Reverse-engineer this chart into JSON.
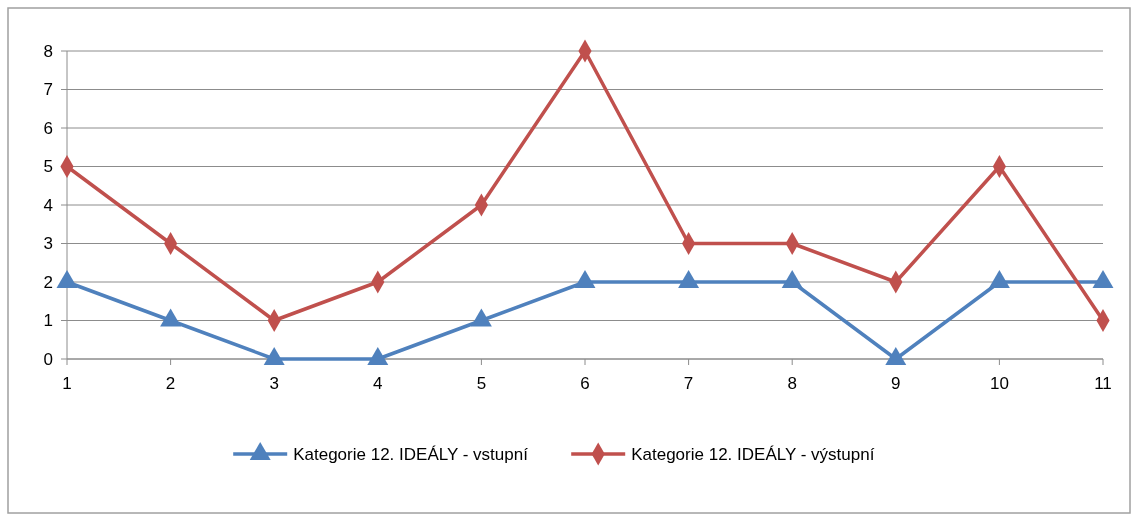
{
  "chart_data": {
    "type": "line",
    "x": [
      1,
      2,
      3,
      4,
      5,
      6,
      7,
      8,
      9,
      10,
      11
    ],
    "xlim": [
      1,
      11
    ],
    "xticks": [
      1,
      2,
      3,
      4,
      5,
      6,
      7,
      8,
      9,
      10,
      11
    ],
    "ylim": [
      0,
      8
    ],
    "yticks": [
      0,
      1,
      2,
      3,
      4,
      5,
      6,
      7,
      8
    ],
    "grid": "y",
    "legend": "bottom",
    "line_style": "solid",
    "series": [
      {
        "name": "Kategorie 12. IDEÁLY - vstupní",
        "color": "#4f81bd",
        "marker": "triangle",
        "values": [
          2,
          1,
          0,
          0,
          1,
          2,
          2,
          2,
          0,
          2,
          2
        ]
      },
      {
        "name": "Kategorie 12. IDEÁLY - výstupní",
        "color": "#c0504d",
        "marker": "diamond",
        "values": [
          5,
          3,
          1,
          2,
          4,
          8,
          3,
          3,
          2,
          5,
          1
        ]
      }
    ]
  }
}
